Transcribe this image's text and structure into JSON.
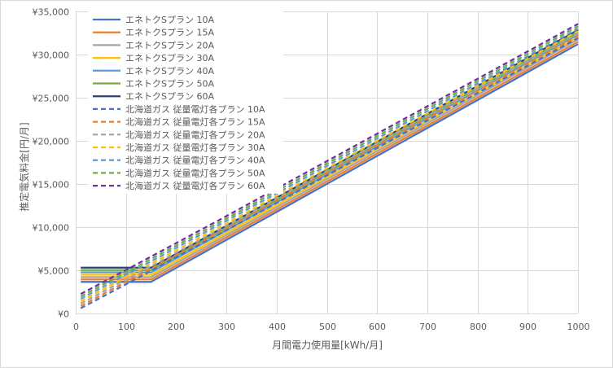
{
  "chart_data": {
    "type": "line",
    "title": "",
    "xlabel": "月間電力使用量[kWh/月]",
    "ylabel": "推定電気料金[円/月]",
    "xlim": [
      0,
      1000
    ],
    "ylim": [
      0,
      35000
    ],
    "x_ticks": [
      "0",
      "100",
      "200",
      "300",
      "400",
      "500",
      "600",
      "700",
      "800",
      "900",
      "1000"
    ],
    "y_ticks": [
      "¥0",
      "¥5,000",
      "¥10,000",
      "¥15,000",
      "¥20,000",
      "¥25,000",
      "¥30,000",
      "¥35,000"
    ],
    "grid": true,
    "legend_position": "top-left",
    "series": [
      {
        "name": "エネトクSプラン 10A",
        "color": "#4472C4",
        "dash": "solid",
        "x": [
          10,
          150,
          1000
        ],
        "y": [
          3660,
          3660,
          31210
        ]
      },
      {
        "name": "エネトクSプラン 15A",
        "color": "#ED7D31",
        "dash": "solid",
        "x": [
          10,
          150,
          1000
        ],
        "y": [
          3935,
          3935,
          31485
        ]
      },
      {
        "name": "エネトクSプラン 20A",
        "color": "#A5A5A5",
        "dash": "solid",
        "x": [
          10,
          150,
          1000
        ],
        "y": [
          4210,
          4210,
          31760
        ]
      },
      {
        "name": "エネトクSプラン 30A",
        "color": "#FFC000",
        "dash": "solid",
        "x": [
          10,
          150,
          1000
        ],
        "y": [
          4480,
          4480,
          32030
        ]
      },
      {
        "name": "エネトクSプラン 40A",
        "color": "#5B9BD5",
        "dash": "solid",
        "x": [
          10,
          150,
          1000
        ],
        "y": [
          4760,
          4760,
          32310
        ]
      },
      {
        "name": "エネトクSプラン 50A",
        "color": "#70AD47",
        "dash": "solid",
        "x": [
          10,
          150,
          1000
        ],
        "y": [
          5030,
          5030,
          32580
        ]
      },
      {
        "name": "エネトクSプラン 60A",
        "color": "#264478",
        "dash": "solid",
        "x": [
          10,
          150,
          1000
        ],
        "y": [
          5300,
          5300,
          32850
        ]
      },
      {
        "name": "北海道ガス 従量電灯各プラン 10A",
        "color": "#4472C4",
        "dash": "dashed",
        "x": [
          10,
          120,
          280,
          1000
        ],
        "y": [
          600,
          4000,
          9000,
          31900
        ]
      },
      {
        "name": "北海道ガス 従量電灯各プラン 15A",
        "color": "#ED7D31",
        "dash": "dashed",
        "x": [
          10,
          120,
          280,
          1000
        ],
        "y": [
          870,
          4270,
          9270,
          32170
        ]
      },
      {
        "name": "北海道ガス 従量電灯各プラン 20A",
        "color": "#A5A5A5",
        "dash": "dashed",
        "x": [
          10,
          120,
          280,
          1000
        ],
        "y": [
          1150,
          4550,
          9550,
          32450
        ]
      },
      {
        "name": "北海道ガス 従量電灯各プラン 30A",
        "color": "#FFC000",
        "dash": "dashed",
        "x": [
          10,
          120,
          280,
          1000
        ],
        "y": [
          1420,
          4820,
          9820,
          32720
        ]
      },
      {
        "name": "北海道ガス 従量電灯各プラン 40A",
        "color": "#5B9BD5",
        "dash": "dashed",
        "x": [
          10,
          120,
          280,
          1000
        ],
        "y": [
          1700,
          5100,
          10100,
          33000
        ]
      },
      {
        "name": "北海道ガス 従量電灯各プラン 50A",
        "color": "#70AD47",
        "dash": "dashed",
        "x": [
          10,
          120,
          280,
          1000
        ],
        "y": [
          1970,
          5370,
          10370,
          33270
        ]
      },
      {
        "name": "北海道ガス 従量電灯各プラン 60A",
        "color": "#7030A0",
        "dash": "dashed",
        "x": [
          10,
          120,
          280,
          1000
        ],
        "y": [
          2250,
          5650,
          10650,
          33550
        ]
      }
    ]
  }
}
